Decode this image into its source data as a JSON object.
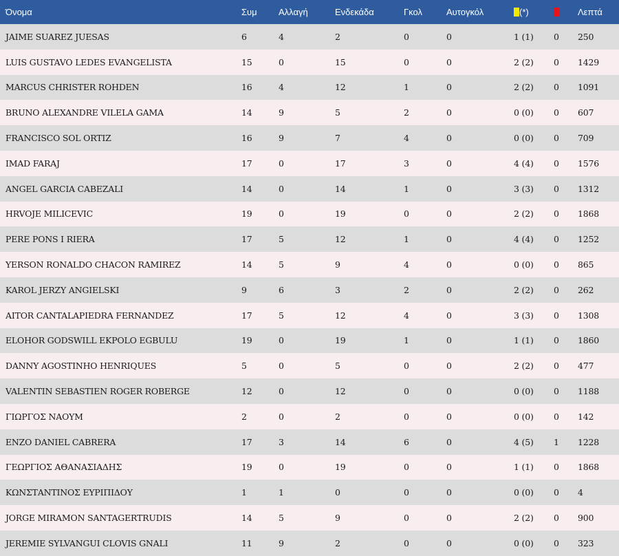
{
  "colors": {
    "header_bg": "#2e5c9e",
    "row_odd": "#dcdcdc",
    "row_even": "#f8eef0",
    "yellow_card": "#f2ea05",
    "red_card": "#e8141c"
  },
  "headers": {
    "name": "Όνομα",
    "apps": "Συμ",
    "sub": "Αλλαγή",
    "starts": "Ενδεκάδα",
    "goals": "Γκολ",
    "own_goals": "Αυτογκόλ",
    "yellow_note": "(*)",
    "yellow_icon": "yellow-card-icon",
    "red_icon": "red-card-icon",
    "minutes": "Λεπτά"
  },
  "players": [
    {
      "name": "JAIME SUAREZ JUESAS",
      "apps": "6",
      "sub": "4",
      "starts": "2",
      "goals": "0",
      "own": "0",
      "yellow": "1 (1)",
      "red": "0",
      "min": "250"
    },
    {
      "name": "LUIS GUSTAVO LEDES EVANGELISTA",
      "apps": "15",
      "sub": "0",
      "starts": "15",
      "goals": "0",
      "own": "0",
      "yellow": "2 (2)",
      "red": "0",
      "min": "1429"
    },
    {
      "name": "MARCUS CHRISTER ROHDEN",
      "apps": "16",
      "sub": "4",
      "starts": "12",
      "goals": "1",
      "own": "0",
      "yellow": "2 (2)",
      "red": "0",
      "min": "1091"
    },
    {
      "name": "BRUNO ALEXANDRE VILELA GAMA",
      "apps": "14",
      "sub": "9",
      "starts": "5",
      "goals": "2",
      "own": "0",
      "yellow": "0 (0)",
      "red": "0",
      "min": "607"
    },
    {
      "name": "FRANCISCO SOL ORTIZ",
      "apps": "16",
      "sub": "9",
      "starts": "7",
      "goals": "4",
      "own": "0",
      "yellow": "0 (0)",
      "red": "0",
      "min": "709"
    },
    {
      "name": "IMAD FARAJ",
      "apps": "17",
      "sub": "0",
      "starts": "17",
      "goals": "3",
      "own": "0",
      "yellow": "4 (4)",
      "red": "0",
      "min": "1576"
    },
    {
      "name": "ANGEL GARCIA CABEZALI",
      "apps": "14",
      "sub": "0",
      "starts": "14",
      "goals": "1",
      "own": "0",
      "yellow": "3 (3)",
      "red": "0",
      "min": "1312"
    },
    {
      "name": "HRVOJE MILICEVIC",
      "apps": "19",
      "sub": "0",
      "starts": "19",
      "goals": "0",
      "own": "0",
      "yellow": "2 (2)",
      "red": "0",
      "min": "1868"
    },
    {
      "name": "PERE PONS I RIERA",
      "apps": "17",
      "sub": "5",
      "starts": "12",
      "goals": "1",
      "own": "0",
      "yellow": "4 (4)",
      "red": "0",
      "min": "1252"
    },
    {
      "name": "YERSON RONALDO CHACON RAMIREZ",
      "apps": "14",
      "sub": "5",
      "starts": "9",
      "goals": "4",
      "own": "0",
      "yellow": "0 (0)",
      "red": "0",
      "min": "865"
    },
    {
      "name": "KAROL JERZY ANGIELSKI",
      "apps": "9",
      "sub": "6",
      "starts": "3",
      "goals": "2",
      "own": "0",
      "yellow": "2 (2)",
      "red": "0",
      "min": "262"
    },
    {
      "name": "AITOR CANTALAPIEDRA FERNANDEZ",
      "apps": "17",
      "sub": "5",
      "starts": "12",
      "goals": "4",
      "own": "0",
      "yellow": "3 (3)",
      "red": "0",
      "min": "1308"
    },
    {
      "name": "ELOHOR GODSWILL EKPOLO EGBULU",
      "apps": "19",
      "sub": "0",
      "starts": "19",
      "goals": "1",
      "own": "0",
      "yellow": "1 (1)",
      "red": "0",
      "min": "1860"
    },
    {
      "name": "DANNY AGOSTINHO HENRIQUES",
      "apps": "5",
      "sub": "0",
      "starts": "5",
      "goals": "0",
      "own": "0",
      "yellow": "2 (2)",
      "red": "0",
      "min": "477"
    },
    {
      "name": "VALENTIN SEBASTIEN ROGER ROBERGE",
      "apps": "12",
      "sub": "0",
      "starts": "12",
      "goals": "0",
      "own": "0",
      "yellow": "0 (0)",
      "red": "0",
      "min": "1188"
    },
    {
      "name": "ΓΙΩΡΓΟΣ ΝΑΟΥΜ",
      "apps": "2",
      "sub": "0",
      "starts": "2",
      "goals": "0",
      "own": "0",
      "yellow": "0 (0)",
      "red": "0",
      "min": "142"
    },
    {
      "name": "ENZO DANIEL CABRERA",
      "apps": "17",
      "sub": "3",
      "starts": "14",
      "goals": "6",
      "own": "0",
      "yellow": "4 (5)",
      "red": "1",
      "min": "1228"
    },
    {
      "name": "ΓΕΩΡΓΙΟΣ ΑΘΑΝΑΣΙΑΔΗΣ",
      "apps": "19",
      "sub": "0",
      "starts": "19",
      "goals": "0",
      "own": "0",
      "yellow": "1 (1)",
      "red": "0",
      "min": "1868"
    },
    {
      "name": "ΚΩΝΣΤΑΝΤΙΝΟΣ ΕΥΡΙΠΙΔΟΥ",
      "apps": "1",
      "sub": "1",
      "starts": "0",
      "goals": "0",
      "own": "0",
      "yellow": "0 (0)",
      "red": "0",
      "min": "4"
    },
    {
      "name": "JORGE MIRAMON SANTAGERTRUDIS",
      "apps": "14",
      "sub": "5",
      "starts": "9",
      "goals": "0",
      "own": "0",
      "yellow": "2 (2)",
      "red": "0",
      "min": "900"
    },
    {
      "name": "JEREMIE SYLVANGUI CLOVIS GNALI",
      "apps": "11",
      "sub": "9",
      "starts": "2",
      "goals": "0",
      "own": "0",
      "yellow": "0 (0)",
      "red": "0",
      "min": "323"
    }
  ]
}
